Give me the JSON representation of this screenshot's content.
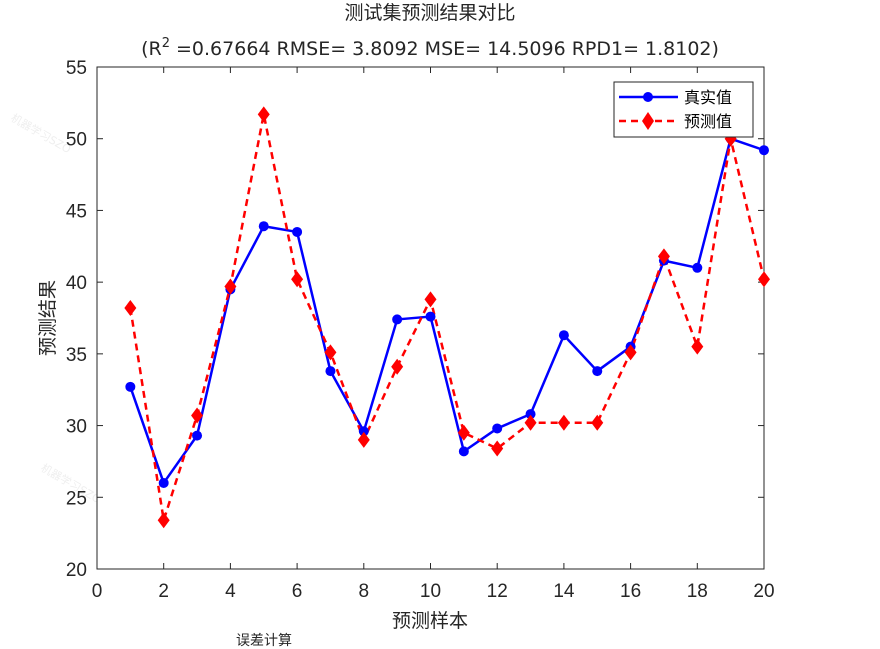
{
  "chart_data": {
    "type": "line",
    "title": "测试集预测结果对比",
    "subtitle": {
      "prefix": "(R",
      "superscript": "2",
      "suffix": " =0.67664 RMSE= 3.8092 MSE= 14.5096 RPD1= 1.8102)"
    },
    "xlabel": "预测样本",
    "ylabel": "预测结果",
    "xlim": [
      0,
      20
    ],
    "ylim": [
      20,
      55
    ],
    "xticks": [
      0,
      2,
      4,
      6,
      8,
      10,
      12,
      14,
      16,
      18,
      20
    ],
    "yticks": [
      20,
      25,
      30,
      35,
      40,
      45,
      50,
      55
    ],
    "grid": false,
    "legend_position": "top-right",
    "x": [
      1,
      2,
      3,
      4,
      5,
      6,
      7,
      8,
      9,
      10,
      11,
      12,
      13,
      14,
      15,
      16,
      17,
      18,
      19,
      20
    ],
    "series": [
      {
        "name": "真实值",
        "color": "#0000ff",
        "line_style": "solid",
        "marker": "circle",
        "values": [
          32.7,
          26.0,
          29.3,
          39.5,
          43.9,
          43.5,
          33.8,
          29.6,
          37.4,
          37.6,
          28.2,
          29.8,
          30.8,
          36.3,
          33.8,
          35.5,
          41.5,
          41.0,
          50.0,
          49.2
        ]
      },
      {
        "name": "预测值",
        "color": "#ff0000",
        "line_style": "dashed",
        "marker": "diamond",
        "values": [
          38.2,
          23.4,
          30.7,
          39.7,
          51.7,
          40.2,
          35.1,
          29.0,
          34.1,
          38.8,
          29.5,
          28.4,
          30.2,
          30.2,
          30.2,
          35.1,
          41.8,
          35.5,
          50.0,
          40.2
        ]
      }
    ]
  },
  "watermark": "机器学习SZO",
  "stray_text": "误差计算"
}
